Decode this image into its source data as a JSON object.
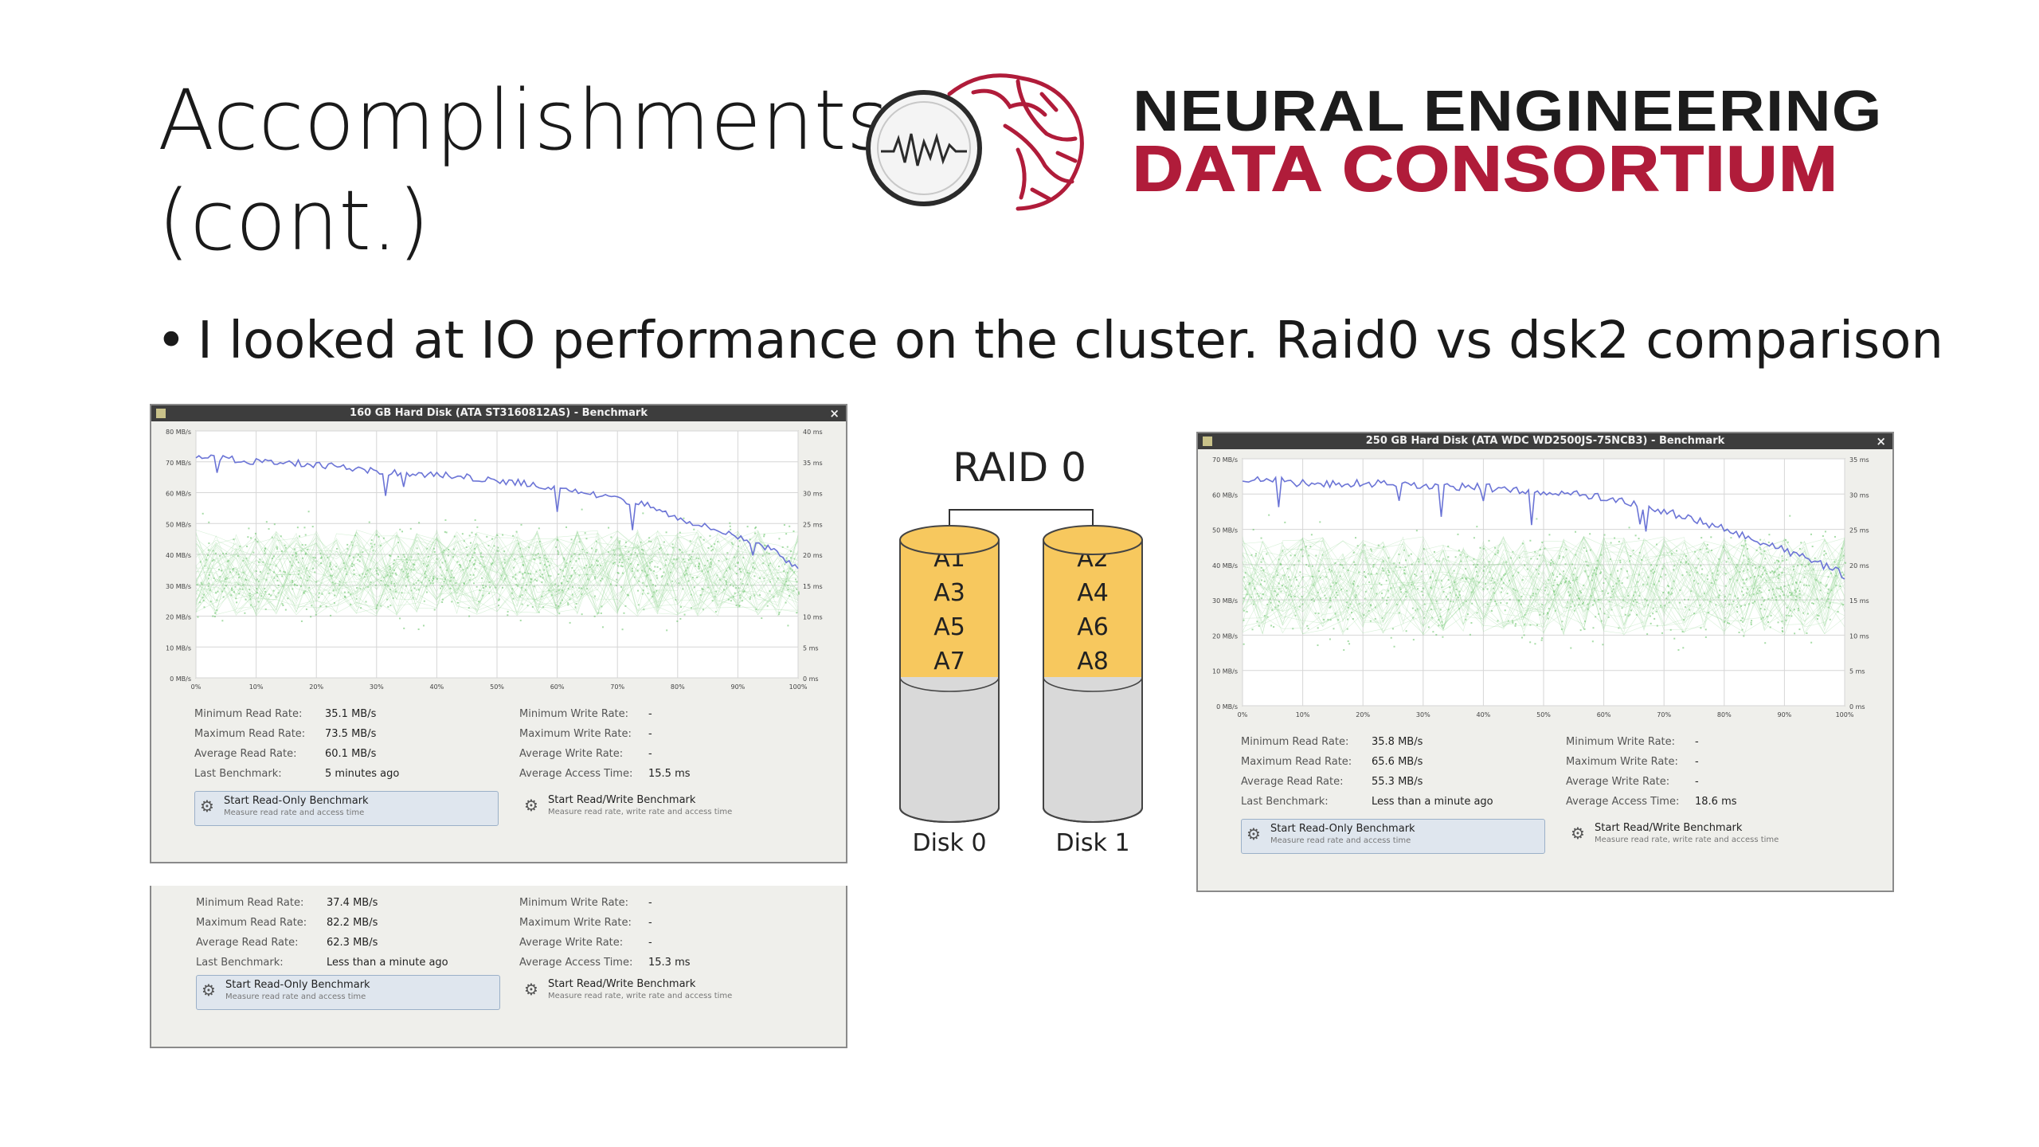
{
  "slide": {
    "title_line1": "Accomplishments",
    "title_line2": "(cont.)",
    "bullet": "I looked at IO performance on the cluster. Raid0 vs dsk2 comparison"
  },
  "logo": {
    "line1": "NEURAL ENGINEERING",
    "line2": "DATA CONSORTIUM",
    "colors": {
      "dark": "#1c1c1c",
      "accent": "#b01c3a"
    },
    "icon": "brain-oscilloscope-icon"
  },
  "bench_left": {
    "window_title": "160 GB Hard Disk (ATA ST3160812AS) - Benchmark",
    "y_left_ticks": [
      "80 MB/s",
      "70 MB/s",
      "60 MB/s",
      "50 MB/s",
      "40 MB/s",
      "30 MB/s",
      "20 MB/s",
      "10 MB/s",
      "0 MB/s"
    ],
    "y_right_ticks": [
      "40 ms",
      "35 ms",
      "30 ms",
      "25 ms",
      "20 ms",
      "15 ms",
      "10 ms",
      "5 ms",
      "0 ms"
    ],
    "x_ticks": [
      "0%",
      "10%",
      "20%",
      "30%",
      "40%",
      "50%",
      "60%",
      "70%",
      "80%",
      "90%",
      "100%"
    ],
    "stats": {
      "min_read_label": "Minimum Read Rate:",
      "min_read": "35.1 MB/s",
      "max_read_label": "Maximum Read Rate:",
      "max_read": "73.5 MB/s",
      "avg_read_label": "Average Read Rate:",
      "avg_read": "60.1 MB/s",
      "last_label": "Last Benchmark:",
      "last": "5 minutes ago",
      "min_write_label": "Minimum Write Rate:",
      "min_write": "-",
      "max_write_label": "Maximum Write Rate:",
      "max_write": "-",
      "avg_write_label": "Average Write Rate:",
      "avg_write": "-",
      "access_label": "Average Access Time:",
      "access": "15.5 ms"
    },
    "btn_ro": {
      "title": "Start Read-Only Benchmark",
      "sub": "Measure read rate and access time"
    },
    "btn_rw": {
      "title": "Start Read/Write Benchmark",
      "sub": "Measure read rate, write rate and access time"
    }
  },
  "bench_bottom": {
    "stats": {
      "min_read_label": "Minimum Read Rate:",
      "min_read": "37.4 MB/s",
      "max_read_label": "Maximum Read Rate:",
      "max_read": "82.2 MB/s",
      "avg_read_label": "Average Read Rate:",
      "avg_read": "62.3 MB/s",
      "last_label": "Last Benchmark:",
      "last": "Less than a minute ago",
      "min_write_label": "Minimum Write Rate:",
      "min_write": "-",
      "max_write_label": "Maximum Write Rate:",
      "max_write": "-",
      "avg_write_label": "Average Write Rate:",
      "avg_write": "-",
      "access_label": "Average Access Time:",
      "access": "15.3 ms"
    },
    "btn_ro": {
      "title": "Start Read-Only Benchmark",
      "sub": "Measure read rate and access time"
    },
    "btn_rw": {
      "title": "Start Read/Write Benchmark",
      "sub": "Measure read rate, write rate and access time"
    }
  },
  "bench_right": {
    "window_title": "250 GB Hard Disk (ATA WDC WD2500JS-75NCB3) - Benchmark",
    "y_left_ticks": [
      "70 MB/s",
      "60 MB/s",
      "50 MB/s",
      "40 MB/s",
      "30 MB/s",
      "20 MB/s",
      "10 MB/s",
      "0 MB/s"
    ],
    "y_right_ticks": [
      "35 ms",
      "30 ms",
      "25 ms",
      "20 ms",
      "15 ms",
      "10 ms",
      "5 ms",
      "0 ms"
    ],
    "x_ticks": [
      "0%",
      "10%",
      "20%",
      "30%",
      "40%",
      "50%",
      "60%",
      "70%",
      "80%",
      "90%",
      "100%"
    ],
    "stats": {
      "min_read_label": "Minimum Read Rate:",
      "min_read": "35.8 MB/s",
      "max_read_label": "Maximum Read Rate:",
      "max_read": "65.6 MB/s",
      "avg_read_label": "Average Read Rate:",
      "avg_read": "55.3 MB/s",
      "last_label": "Last Benchmark:",
      "last": "Less than a minute ago",
      "min_write_label": "Minimum Write Rate:",
      "min_write": "-",
      "max_write_label": "Maximum Write Rate:",
      "max_write": "-",
      "avg_write_label": "Average Write Rate:",
      "avg_write": "-",
      "access_label": "Average Access Time:",
      "access": "18.6 ms"
    },
    "btn_ro": {
      "title": "Start Read-Only Benchmark",
      "sub": "Measure read rate and access time"
    },
    "btn_rw": {
      "title": "Start Read/Write Benchmark",
      "sub": "Measure read rate, write rate and access time"
    }
  },
  "raid": {
    "title": "RAID 0",
    "disk0": {
      "label": "Disk 0",
      "blocks": [
        "A1",
        "A3",
        "A5",
        "A7"
      ]
    },
    "disk1": {
      "label": "Disk 1",
      "blocks": [
        "A2",
        "A4",
        "A6",
        "A8"
      ]
    },
    "colors": {
      "block": "#f7c85e",
      "disk": "#d9d9d9"
    }
  },
  "chart_data": [
    {
      "type": "line",
      "title": "160 GB Hard Disk (ATA ST3160812AS) - Benchmark",
      "xlim": [
        0,
        100
      ],
      "ylim": [
        0,
        80
      ],
      "y2lim": [
        0,
        40
      ],
      "series": [
        {
          "name": "",
          "x": [
            0,
            5,
            10,
            15,
            20,
            25,
            30,
            35,
            40,
            45,
            50,
            55,
            60,
            65,
            70,
            75,
            80,
            85,
            90,
            95,
            100
          ],
          "values": [
            72,
            71,
            70,
            70,
            69,
            68,
            67,
            66,
            66,
            65,
            64,
            63,
            61,
            60,
            58,
            56,
            52,
            49,
            46,
            42,
            36
          ]
        }
      ],
      "grid": true
    },
    {
      "type": "line",
      "title": "250 GB Hard Disk (ATA WDC WD2500JS-75NCB3) - Benchmark",
      "xlim": [
        0,
        100
      ],
      "ylim": [
        0,
        70
      ],
      "y2lim": [
        0,
        35
      ],
      "series": [
        {
          "name": "",
          "x": [
            0,
            5,
            10,
            15,
            20,
            25,
            30,
            35,
            40,
            45,
            50,
            55,
            60,
            65,
            70,
            75,
            80,
            85,
            90,
            95,
            100
          ],
          "values": [
            64,
            64,
            63,
            63,
            63,
            63,
            62,
            62,
            62,
            61,
            60,
            60,
            59,
            57,
            55,
            53,
            50,
            47,
            44,
            41,
            37
          ]
        }
      ],
      "grid": true
    }
  ]
}
